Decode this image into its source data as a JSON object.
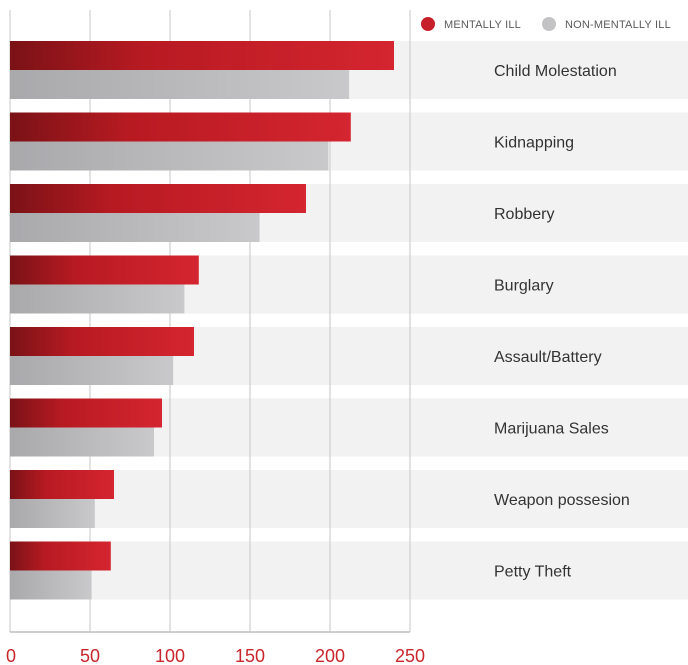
{
  "legend": [
    {
      "label": "MENTALLY ILL",
      "color": "#c8202a"
    },
    {
      "label": "NON-MENTALLY ILL",
      "color": "#c3c3c5"
    }
  ],
  "colors": {
    "accent_tick_labels": "#c8262d",
    "band": "#f2f2f2",
    "grid": "#cfcfcf"
  },
  "chart_data": {
    "type": "bar",
    "orientation": "horizontal",
    "categories": [
      "Child Molestation",
      "Kidnapping",
      "Robbery",
      "Burglary",
      "Assault/Battery",
      "Marijuana Sales",
      "Weapon possesion",
      "Petty Theft"
    ],
    "series": [
      {
        "name": "MENTALLY ILL",
        "values": [
          240,
          213,
          185,
          118,
          115,
          95,
          65,
          63
        ]
      },
      {
        "name": "NON-MENTALLY ILL",
        "values": [
          212,
          199,
          156,
          109,
          102,
          90,
          53,
          51
        ]
      }
    ],
    "xlim": [
      0,
      250
    ],
    "xticks": [
      0,
      50,
      100,
      150,
      200,
      250
    ],
    "grid": true,
    "legend_position": "top-right"
  }
}
